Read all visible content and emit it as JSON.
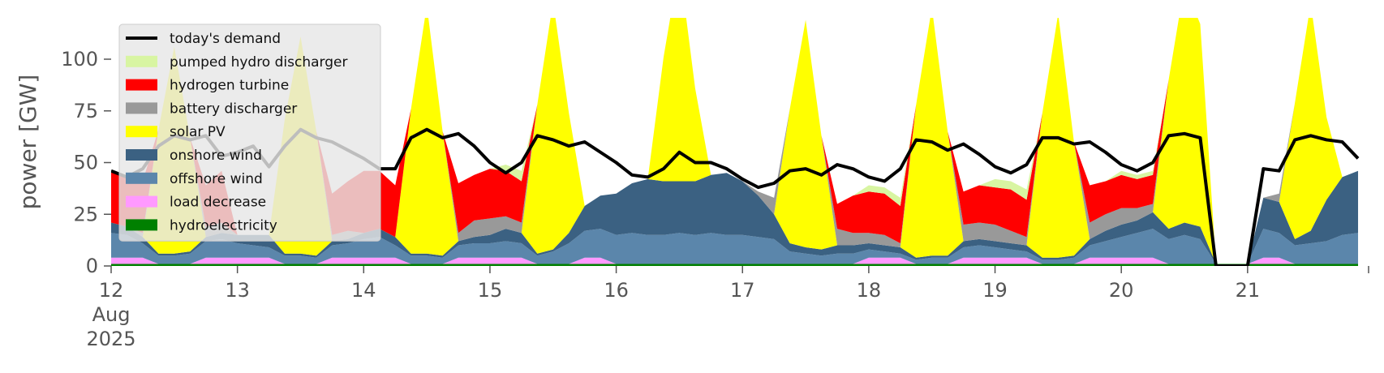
{
  "chart_data": {
    "type": "area",
    "stacked": true,
    "xlabel": "",
    "ylabel": "power [GW]",
    "ylim": [
      0,
      120
    ],
    "xlim": [
      "2025-08-12 00:00",
      "2025-08-21 23:00"
    ],
    "yticks": [
      0,
      25,
      50,
      75,
      100
    ],
    "xticks": [
      {
        "date": "2025-08-12",
        "label": "12",
        "sublabel": "Aug",
        "sublabel2": "2025"
      },
      {
        "date": "2025-08-13",
        "label": "13"
      },
      {
        "date": "2025-08-14",
        "label": "14"
      },
      {
        "date": "2025-08-15",
        "label": "15"
      },
      {
        "date": "2025-08-16",
        "label": "16"
      },
      {
        "date": "2025-08-17",
        "label": "17"
      },
      {
        "date": "2025-08-18",
        "label": "18"
      },
      {
        "date": "2025-08-19",
        "label": "19"
      },
      {
        "date": "2025-08-20",
        "label": "20"
      },
      {
        "date": "2025-08-21",
        "label": "21"
      }
    ],
    "grid": false,
    "legend_position": "upper-left",
    "hours": [
      "00:00",
      "03:00",
      "06:00",
      "09:00",
      "12:00",
      "15:00",
      "18:00",
      "21:00"
    ],
    "demand": {
      "name": "today's demand",
      "color": "#000000",
      "values": [
        [
          46,
          43,
          47,
          58,
          63,
          61,
          63,
          53
        ],
        [
          55,
          58,
          48,
          58,
          66,
          62,
          60,
          56
        ],
        [
          52,
          47,
          47,
          62,
          66,
          62,
          64,
          58
        ],
        [
          50,
          45,
          50,
          63,
          61,
          58,
          60,
          55
        ],
        [
          50,
          44,
          43,
          47,
          55,
          50,
          50,
          47
        ],
        [
          42,
          38,
          40,
          46,
          47,
          44,
          49,
          47
        ],
        [
          43,
          41,
          47,
          61,
          60,
          56,
          59,
          54
        ],
        [
          48,
          45,
          49,
          62,
          62,
          59,
          60,
          55
        ],
        [
          49,
          46,
          50,
          63,
          64,
          62,
          0,
          0
        ],
        [
          0,
          47,
          46,
          61,
          63,
          61,
          60,
          52
        ]
      ]
    },
    "series": [
      {
        "name": "hydroelectricity",
        "color": "#008000",
        "values": [
          [
            1,
            1,
            1,
            1,
            1,
            1,
            1,
            1
          ],
          [
            1,
            1,
            1,
            1,
            1,
            1,
            1,
            1
          ],
          [
            1,
            1,
            1,
            1,
            1,
            1,
            1,
            1
          ],
          [
            1,
            1,
            1,
            1,
            1,
            1,
            1,
            1
          ],
          [
            1,
            1,
            1,
            1,
            1,
            1,
            1,
            1
          ],
          [
            1,
            1,
            1,
            1,
            1,
            1,
            1,
            1
          ],
          [
            1,
            1,
            1,
            1,
            1,
            1,
            1,
            1
          ],
          [
            1,
            1,
            1,
            1,
            1,
            1,
            1,
            1
          ],
          [
            1,
            1,
            1,
            1,
            1,
            1,
            1,
            1
          ],
          [
            1,
            1,
            1,
            1,
            1,
            1,
            1,
            1
          ]
        ]
      },
      {
        "name": "load decrease",
        "color": "#ff99ff",
        "values": [
          [
            3,
            3,
            3,
            0,
            0,
            0,
            3,
            3
          ],
          [
            3,
            3,
            3,
            0,
            0,
            0,
            3,
            3
          ],
          [
            3,
            3,
            3,
            0,
            0,
            0,
            3,
            3
          ],
          [
            3,
            3,
            3,
            0,
            0,
            0,
            3,
            3
          ],
          [
            0,
            0,
            0,
            0,
            0,
            0,
            0,
            0
          ],
          [
            0,
            0,
            0,
            0,
            0,
            0,
            0,
            0
          ],
          [
            3,
            3,
            3,
            0,
            0,
            0,
            3,
            3
          ],
          [
            3,
            3,
            3,
            0,
            0,
            0,
            3,
            3
          ],
          [
            3,
            3,
            3,
            0,
            0,
            0,
            0,
            0
          ],
          [
            0,
            3,
            3,
            0,
            0,
            0,
            0,
            0
          ]
        ]
      },
      {
        "name": "offshore wind",
        "color": "#5b86ab",
        "values": [
          [
            12,
            11,
            7,
            4,
            4,
            5,
            8,
            9
          ],
          [
            7,
            6,
            5,
            4,
            4,
            3,
            6,
            7
          ],
          [
            9,
            10,
            6,
            4,
            4,
            3,
            6,
            7
          ],
          [
            7,
            8,
            7,
            4,
            6,
            10,
            13,
            14
          ],
          [
            14,
            15,
            14,
            14,
            15,
            14,
            15,
            14
          ],
          [
            14,
            13,
            12,
            6,
            5,
            4,
            5,
            5
          ],
          [
            4,
            3,
            2,
            2,
            3,
            3,
            5,
            6
          ],
          [
            5,
            4,
            3,
            2,
            2,
            3,
            6,
            8
          ],
          [
            10,
            12,
            14,
            12,
            14,
            12,
            0,
            0
          ],
          [
            0,
            14,
            12,
            9,
            10,
            11,
            14,
            15
          ]
        ]
      },
      {
        "name": "onshore wind",
        "color": "#3b6182",
        "values": [
          [
            5,
            4,
            3,
            1,
            1,
            1,
            2,
            3
          ],
          [
            4,
            5,
            6,
            1,
            1,
            1,
            2,
            2
          ],
          [
            3,
            4,
            4,
            1,
            1,
            1,
            2,
            3
          ],
          [
            4,
            6,
            5,
            1,
            1,
            5,
            12,
            16
          ],
          [
            20,
            24,
            27,
            26,
            25,
            26,
            28,
            30
          ],
          [
            26,
            20,
            12,
            4,
            3,
            3,
            4,
            4
          ],
          [
            3,
            3,
            3,
            1,
            1,
            1,
            3,
            3
          ],
          [
            3,
            3,
            3,
            1,
            1,
            1,
            3,
            5
          ],
          [
            6,
            6,
            8,
            5,
            6,
            6,
            0,
            0
          ],
          [
            0,
            15,
            15,
            3,
            6,
            20,
            28,
            30
          ]
        ]
      },
      {
        "name": "solar PV",
        "color": "#ffff00",
        "values": [
          [
            0,
            0,
            0,
            60,
            100,
            55,
            0,
            0
          ],
          [
            0,
            0,
            0,
            65,
            105,
            60,
            0,
            0
          ],
          [
            0,
            0,
            0,
            70,
            120,
            60,
            0,
            0
          ],
          [
            0,
            0,
            0,
            72,
            120,
            58,
            0,
            0
          ],
          [
            0,
            0,
            0,
            60,
            105,
            45,
            0,
            0
          ],
          [
            0,
            0,
            0,
            65,
            110,
            55,
            0,
            0
          ],
          [
            0,
            0,
            0,
            74,
            120,
            60,
            0,
            0
          ],
          [
            0,
            0,
            0,
            70,
            118,
            55,
            0,
            0
          ],
          [
            0,
            0,
            0,
            72,
            115,
            98,
            0,
            0
          ],
          [
            0,
            0,
            0,
            66,
            110,
            40,
            0,
            0
          ]
        ]
      },
      {
        "name": "battery discharger",
        "color": "#999999",
        "values": [
          [
            0,
            0,
            2,
            0,
            0,
            0,
            5,
            5
          ],
          [
            0,
            0,
            0,
            0,
            0,
            0,
            3,
            4
          ],
          [
            0,
            0,
            0,
            0,
            0,
            0,
            4,
            8
          ],
          [
            8,
            6,
            5,
            0,
            0,
            0,
            0,
            0
          ],
          [
            0,
            0,
            0,
            0,
            0,
            0,
            0,
            0
          ],
          [
            0,
            2,
            8,
            0,
            0,
            0,
            8,
            6
          ],
          [
            5,
            5,
            2,
            0,
            0,
            0,
            8,
            8
          ],
          [
            8,
            6,
            4,
            0,
            0,
            0,
            8,
            8
          ],
          [
            8,
            6,
            4,
            0,
            0,
            0,
            0,
            0
          ],
          [
            0,
            0,
            4,
            0,
            0,
            0,
            0,
            0
          ]
        ]
      },
      {
        "name": "hydrogen turbine",
        "color": "#ff0000",
        "values": [
          [
            25,
            24,
            25,
            0,
            0,
            0,
            20,
            25
          ],
          [
            0,
            0,
            0,
            0,
            0,
            0,
            20,
            24
          ],
          [
            30,
            28,
            25,
            0,
            0,
            0,
            24,
            22
          ],
          [
            24,
            22,
            20,
            0,
            0,
            0,
            0,
            0
          ],
          [
            0,
            0,
            0,
            0,
            0,
            0,
            0,
            0
          ],
          [
            0,
            0,
            0,
            0,
            0,
            0,
            12,
            18
          ],
          [
            20,
            20,
            18,
            0,
            0,
            0,
            16,
            18
          ],
          [
            18,
            20,
            18,
            0,
            0,
            0,
            18,
            16
          ],
          [
            16,
            14,
            14,
            0,
            0,
            0,
            0,
            0
          ],
          [
            0,
            0,
            0,
            0,
            0,
            0,
            0,
            0
          ]
        ]
      },
      {
        "name": "pumped hydro discharger",
        "color": "#d8f5a2",
        "values": [
          [
            0,
            0,
            0,
            0,
            0,
            0,
            0,
            0
          ],
          [
            0,
            0,
            0,
            0,
            0,
            0,
            0,
            0
          ],
          [
            0,
            0,
            0,
            0,
            0,
            0,
            0,
            0
          ],
          [
            0,
            3,
            5,
            0,
            0,
            0,
            0,
            0
          ],
          [
            0,
            0,
            0,
            0,
            0,
            0,
            0,
            0
          ],
          [
            0,
            0,
            0,
            0,
            0,
            0,
            0,
            0
          ],
          [
            3,
            3,
            4,
            0,
            0,
            0,
            0,
            0
          ],
          [
            4,
            4,
            5,
            0,
            0,
            0,
            0,
            0
          ],
          [
            2,
            2,
            2,
            0,
            0,
            0,
            0,
            0
          ],
          [
            0,
            0,
            0,
            0,
            0,
            0,
            0,
            0
          ]
        ]
      }
    ],
    "legend": [
      {
        "label": "today's demand",
        "color": "#000000",
        "kind": "line"
      },
      {
        "label": "pumped hydro discharger",
        "color": "#d8f5a2",
        "kind": "patch"
      },
      {
        "label": "hydrogen turbine",
        "color": "#ff0000",
        "kind": "patch"
      },
      {
        "label": "battery discharger",
        "color": "#999999",
        "kind": "patch"
      },
      {
        "label": "solar PV",
        "color": "#ffff00",
        "kind": "patch"
      },
      {
        "label": "onshore wind",
        "color": "#3b6182",
        "kind": "patch"
      },
      {
        "label": "offshore wind",
        "color": "#5b86ab",
        "kind": "patch"
      },
      {
        "label": "load decrease",
        "color": "#ff99ff",
        "kind": "patch"
      },
      {
        "label": "hydroelectricity",
        "color": "#008000",
        "kind": "patch"
      }
    ]
  }
}
